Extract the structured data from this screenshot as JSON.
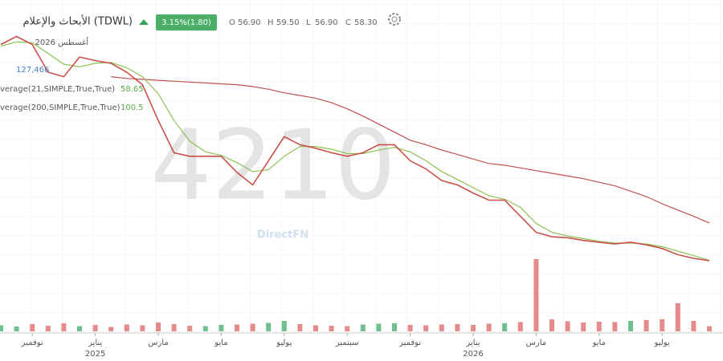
{
  "header": {
    "title": "الأبحاث والإعلام  (TDWL)",
    "change": "3.15%(1.80)",
    "quotes": [
      {
        "name": "O",
        "value": "56.90"
      },
      {
        "name": "H",
        "value": "59.50"
      },
      {
        "name": "L",
        "value": "56.90"
      },
      {
        "name": "C",
        "value": "58.30"
      }
    ],
    "watermark": "4210",
    "brand": "DirectFN"
  },
  "chart_data": {
    "type": "line",
    "date_label": "أغسطس 2026",
    "categories": [
      null,
      null,
      "نوفمبر",
      null,
      null,
      null,
      {
        "month": "يناير",
        "year": "2025"
      },
      null,
      null,
      null,
      "مارس",
      null,
      null,
      null,
      "مايو",
      null,
      null,
      null,
      "يوليو",
      null,
      null,
      null,
      "سبتمبر",
      null,
      null,
      null,
      "نوفمبر",
      null,
      null,
      null,
      {
        "month": "يناير",
        "year": "2026"
      },
      null,
      null,
      null,
      "مارس",
      null,
      null,
      null,
      "مايو",
      null,
      null,
      null,
      "يوليو",
      null,
      null,
      null
    ],
    "series": [
      {
        "name": "Close",
        "color": "#c9504a",
        "values": [
          300,
          309,
          300,
          269,
          264,
          286,
          282,
          279,
          269,
          255,
          215,
          179,
          175,
          175,
          175,
          157,
          143,
          170,
          197,
          188,
          184,
          179,
          175,
          179,
          188,
          188,
          170,
          161,
          148,
          143,
          134,
          126,
          126,
          108,
          90,
          85,
          84,
          81,
          79,
          77,
          79,
          76,
          72,
          65,
          61,
          58.3
        ]
      },
      {
        "name": "verage(21,SIMPLE,True,True)",
        "color": "#8cc152",
        "last_label": "58.65",
        "values": [
          298,
          303,
          302,
          290,
          278,
          275,
          279,
          280,
          274,
          264,
          245,
          215,
          192,
          180,
          176,
          168,
          158,
          160,
          175,
          186,
          186,
          183,
          178,
          178,
          182,
          185,
          180,
          170,
          158,
          149,
          140,
          131,
          127,
          118,
          100,
          90,
          86,
          83,
          80,
          78,
          78,
          77,
          74,
          69,
          64,
          58.65
        ]
      },
      {
        "name": "verage(200,SIMPLE,True,True)",
        "color": "#c0504d",
        "last_label": "100.5",
        "values": [
          null,
          null,
          null,
          null,
          null,
          null,
          null,
          264,
          262,
          261,
          260,
          259,
          258,
          257,
          256,
          255,
          253,
          250,
          246,
          243,
          240,
          235,
          228,
          220,
          211,
          202,
          193,
          188,
          182,
          177,
          172,
          167,
          165,
          162,
          159,
          156,
          153,
          150,
          146,
          142,
          136,
          130,
          122,
          115,
          108,
          100.5
        ]
      }
    ],
    "ylim": [
      0,
      330
    ],
    "volume": {
      "values": [
        150000,
        120000,
        180000,
        140000,
        200000,
        130000,
        160000,
        110000,
        170000,
        150000,
        220000,
        180000,
        140000,
        130000,
        160000,
        170000,
        190000,
        210000,
        260000,
        180000,
        150000,
        140000,
        130000,
        170000,
        190000,
        200000,
        160000,
        150000,
        170000,
        180000,
        160000,
        190000,
        200000,
        230000,
        1800000,
        300000,
        250000,
        220000,
        240000,
        230000,
        260000,
        280000,
        300000,
        700000,
        260000,
        127466
      ],
      "last_label": "127,466",
      "color_up": "#6fbf8f",
      "color_down": "#e58b8b",
      "ylim": [
        0,
        2000000
      ]
    }
  }
}
